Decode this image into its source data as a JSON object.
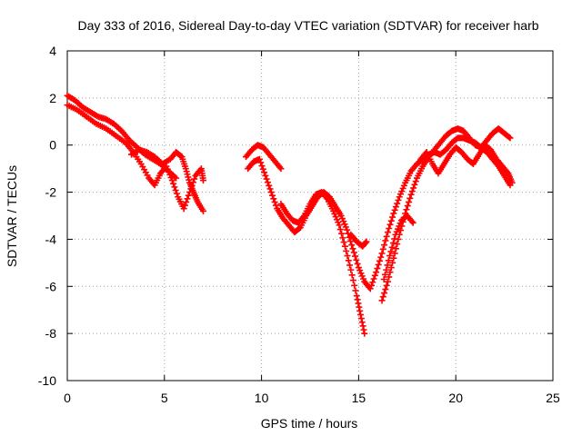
{
  "chart_data": {
    "type": "scatter",
    "title": "Day 333 of 2016, Sidereal Day-to-day VTEC variation (SDTVAR) for receiver harb",
    "xlabel": "GPS time / hours",
    "ylabel": "SDTVAR / TECUs",
    "xlim": [
      0,
      25
    ],
    "ylim": [
      -10,
      4
    ],
    "xticks": [
      0,
      5,
      10,
      15,
      20,
      25
    ],
    "yticks": [
      -10,
      -8,
      -6,
      -4,
      -2,
      0,
      2,
      4
    ],
    "grid": true,
    "marker": "+",
    "color": "#ff0000",
    "series": [
      {
        "name": "SDTVAR",
        "segments": [
          {
            "x": [
              0.0,
              0.4,
              0.8,
              1.2,
              1.6,
              2.0,
              2.4,
              2.8,
              3.2,
              3.6,
              4.0,
              4.4,
              4.8,
              5.2,
              5.6
            ],
            "y": [
              2.1,
              1.9,
              1.6,
              1.4,
              1.2,
              1.1,
              0.9,
              0.6,
              0.2,
              -0.1,
              -0.4,
              -0.6,
              -0.8,
              -1.1,
              -1.4
            ]
          },
          {
            "x": [
              0.0,
              0.5,
              1.0,
              1.5,
              2.0,
              2.5,
              3.0,
              3.4,
              3.8,
              4.2,
              4.5,
              4.8,
              5.1,
              5.4,
              5.7,
              6.0,
              6.3,
              6.6,
              6.9,
              7.0
            ],
            "y": [
              1.7,
              1.5,
              1.2,
              0.9,
              0.7,
              0.4,
              0.1,
              -0.3,
              -0.8,
              -1.4,
              -1.7,
              -1.2,
              -0.9,
              -1.5,
              -2.2,
              -2.7,
              -2.0,
              -1.3,
              -1.0,
              -1.5
            ]
          },
          {
            "x": [
              3.3,
              3.7,
              4.1,
              4.5,
              4.9,
              5.3,
              5.6,
              5.9,
              6.1,
              6.3,
              6.5,
              6.7,
              7.0
            ],
            "y": [
              -0.4,
              -0.2,
              -0.3,
              -0.5,
              -0.8,
              -0.6,
              -0.3,
              -0.5,
              -1.0,
              -1.6,
              -2.0,
              -2.4,
              -2.8
            ]
          },
          {
            "x": [
              9.2,
              9.5,
              9.8,
              10.1,
              10.4,
              10.7,
              11.0
            ],
            "y": [
              -0.5,
              -0.2,
              0.0,
              -0.1,
              -0.4,
              -0.7,
              -1.0
            ]
          },
          {
            "x": [
              9.3,
              9.6,
              9.9,
              10.2,
              10.5,
              10.8,
              11.1,
              11.4,
              11.7,
              12.0,
              12.3,
              12.6,
              12.9,
              13.2,
              13.5,
              13.8,
              14.1,
              14.4,
              14.7,
              15.0,
              15.3,
              15.6,
              15.9,
              16.2,
              16.5,
              16.8,
              17.1,
              17.4,
              17.7,
              18.0,
              18.3,
              18.6,
              18.9,
              19.2,
              19.5,
              19.8,
              20.1,
              20.4,
              20.7,
              21.0,
              21.3,
              21.6,
              21.9,
              22.2,
              22.5,
              22.8
            ],
            "y": [
              -1.0,
              -0.7,
              -0.6,
              -1.3,
              -2.0,
              -2.7,
              -3.1,
              -3.4,
              -3.7,
              -3.5,
              -3.0,
              -2.6,
              -2.2,
              -2.0,
              -2.2,
              -2.6,
              -3.0,
              -3.6,
              -4.4,
              -5.2,
              -5.8,
              -6.1,
              -5.4,
              -4.6,
              -3.7,
              -2.9,
              -2.2,
              -1.6,
              -1.1,
              -0.8,
              -0.6,
              -0.4,
              -0.3,
              -0.4,
              -0.2,
              0.1,
              0.3,
              0.3,
              0.2,
              0.1,
              -0.1,
              -0.3,
              -0.6,
              -0.9,
              -1.3,
              -1.7
            ]
          },
          {
            "x": [
              11.0,
              11.3,
              11.6,
              11.9,
              12.2,
              12.5,
              12.8,
              13.1,
              13.4,
              13.7,
              14.0,
              14.3,
              14.6,
              14.9,
              15.1,
              15.3
            ],
            "y": [
              -2.5,
              -2.9,
              -3.2,
              -3.3,
              -3.0,
              -2.5,
              -2.1,
              -2.0,
              -2.3,
              -2.8,
              -3.4,
              -4.3,
              -5.3,
              -6.4,
              -7.2,
              -8.0
            ]
          },
          {
            "x": [
              14.6,
              14.9,
              15.2,
              15.4
            ],
            "y": [
              -3.8,
              -4.1,
              -4.3,
              -4.1
            ]
          },
          {
            "x": [
              16.2,
              16.5,
              16.8,
              17.1,
              17.4,
              17.7,
              18.0,
              18.3,
              18.6,
              18.9,
              19.2,
              19.5,
              19.8,
              20.1,
              20.4,
              20.7,
              21.0,
              21.3,
              21.6,
              21.9,
              22.2,
              22.5,
              22.8
            ],
            "y": [
              -6.6,
              -5.8,
              -4.8,
              -3.8,
              -2.9,
              -2.1,
              -1.4,
              -0.9,
              -0.5,
              -0.2,
              0.1,
              0.4,
              0.6,
              0.7,
              0.6,
              0.3,
              0.0,
              -0.1,
              0.2,
              0.5,
              0.7,
              0.5,
              0.3
            ]
          },
          {
            "x": [
              16.3,
              16.6,
              16.9,
              17.2,
              17.5,
              17.8
            ],
            "y": [
              -5.7,
              -4.7,
              -3.8,
              -3.2,
              -3.0,
              -3.3
            ]
          },
          {
            "x": [
              18.2,
              18.5,
              18.8,
              19.1,
              19.4,
              19.7,
              20.0,
              20.3,
              20.6,
              20.9,
              21.2,
              21.5,
              21.8,
              22.1,
              22.4,
              22.7,
              22.9
            ],
            "y": [
              -0.6,
              -0.3,
              -0.8,
              -1.2,
              -0.8,
              -0.4,
              -0.1,
              -0.3,
              -0.6,
              -0.8,
              -0.4,
              0.0,
              -0.2,
              -0.6,
              -0.9,
              -1.2,
              -1.6
            ]
          }
        ]
      }
    ]
  }
}
